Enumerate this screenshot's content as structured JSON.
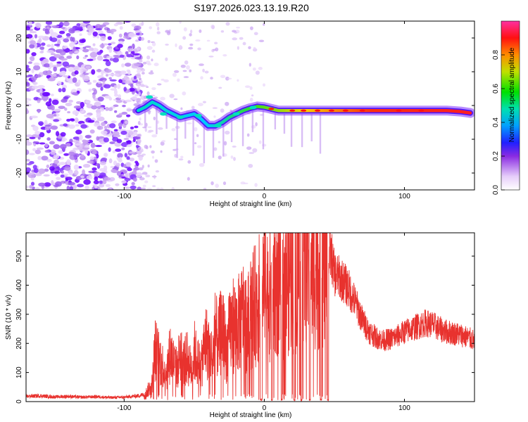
{
  "figure": {
    "title": "S197.2026.023.13.19.R20"
  },
  "colors": {
    "snr_line": "#e8322e",
    "axis": "#000000",
    "spectro_low": "#d9b8ff",
    "spectro_mid": "#6a00ff",
    "ridge": "#ff2a2a"
  },
  "chart_data": [
    {
      "type": "heatmap",
      "title": "",
      "xlabel": "Height of straight line (km)",
      "ylabel": "Frequency (Hz)",
      "xlim": [
        -170,
        150
      ],
      "ylim": [
        -25,
        25
      ],
      "xticks": [
        -100,
        0,
        100
      ],
      "xtick_labels": [
        "-100",
        "0",
        "100"
      ],
      "yticks": [
        -20,
        -10,
        0,
        10,
        20
      ],
      "ytick_labels": [
        "-20",
        "-10",
        "0",
        "10",
        "20"
      ],
      "ridge": {
        "x": [
          -90,
          -85,
          -80,
          -75,
          -70,
          -65,
          -60,
          -55,
          -50,
          -45,
          -40,
          -35,
          -30,
          -25,
          -20,
          -15,
          -10,
          -5,
          0,
          5,
          10,
          15,
          20,
          30,
          40,
          50,
          60,
          70,
          80,
          90,
          100,
          110,
          120,
          130,
          140,
          147
        ],
        "y": [
          -1.5,
          -0.5,
          1,
          0,
          -1.5,
          -2.5,
          -3.5,
          -3,
          -2.5,
          -4,
          -6,
          -6,
          -5,
          -3.5,
          -2.5,
          -1.5,
          -0.8,
          -0.3,
          -0.5,
          -1,
          -1.5,
          -1.5,
          -1.5,
          -1.5,
          -1.5,
          -1.5,
          -1.5,
          -1.5,
          -1.5,
          -1.5,
          -1.5,
          -1.5,
          -1.5,
          -1.5,
          -1.8,
          -2.2
        ]
      },
      "colorbar": {
        "label": "Normalized spectral amplitude",
        "range": [
          0,
          1
        ],
        "ticks": [
          0.0,
          0.2,
          0.4,
          0.6,
          0.8
        ],
        "tick_labels": [
          "0.0",
          "0.2",
          "0.4",
          "0.6",
          "0.8"
        ],
        "colormap": "white-purple-blue-cyan-green-yellow-red-magenta"
      }
    },
    {
      "type": "line",
      "title": "",
      "xlabel": "Height of straight line (km)",
      "ylabel": "SNR (10 * v/v)",
      "xlim": [
        -170,
        150
      ],
      "ylim": [
        0,
        580
      ],
      "xticks": [
        -100,
        0,
        100
      ],
      "xtick_labels": [
        "-100",
        "0",
        "100"
      ],
      "yticks": [
        0,
        100,
        200,
        300,
        400,
        500
      ],
      "ytick_labels": [
        "0",
        "100",
        "200",
        "300",
        "400",
        "500"
      ],
      "series": [
        {
          "name": "SNR",
          "x": [
            -170,
            -160,
            -150,
            -140,
            -130,
            -120,
            -110,
            -100,
            -90,
            -85,
            -80,
            -78,
            -75,
            -72,
            -70,
            -67,
            -65,
            -62,
            -60,
            -58,
            -55,
            -52,
            -50,
            -48,
            -45,
            -42,
            -40,
            -37,
            -35,
            -33,
            -30,
            -27,
            -25,
            -22,
            -20,
            -17,
            -15,
            -12,
            -10,
            -8,
            -5,
            -3,
            0,
            3,
            5,
            8,
            10,
            12,
            15,
            18,
            20,
            22,
            25,
            28,
            30,
            33,
            35,
            38,
            40,
            43,
            45,
            48,
            50,
            55,
            60,
            65,
            70,
            75,
            80,
            85,
            90,
            95,
            100,
            105,
            110,
            115,
            120,
            125,
            130,
            135,
            140,
            145,
            150
          ],
          "y": [
            18,
            20,
            16,
            18,
            15,
            17,
            14,
            15,
            20,
            25,
            60,
            180,
            150,
            120,
            100,
            170,
            140,
            110,
            180,
            130,
            150,
            110,
            175,
            140,
            120,
            210,
            190,
            150,
            240,
            200,
            260,
            170,
            230,
            270,
            250,
            280,
            300,
            260,
            300,
            320,
            340,
            360,
            380,
            380,
            360,
            400,
            420,
            380,
            400,
            450,
            420,
            460,
            480,
            540,
            520,
            480,
            470,
            500,
            460,
            480,
            500,
            500,
            440,
            420,
            390,
            340,
            280,
            240,
            220,
            210,
            215,
            225,
            240,
            250,
            260,
            270,
            265,
            250,
            240,
            235,
            230,
            220,
            210
          ]
        }
      ]
    }
  ]
}
